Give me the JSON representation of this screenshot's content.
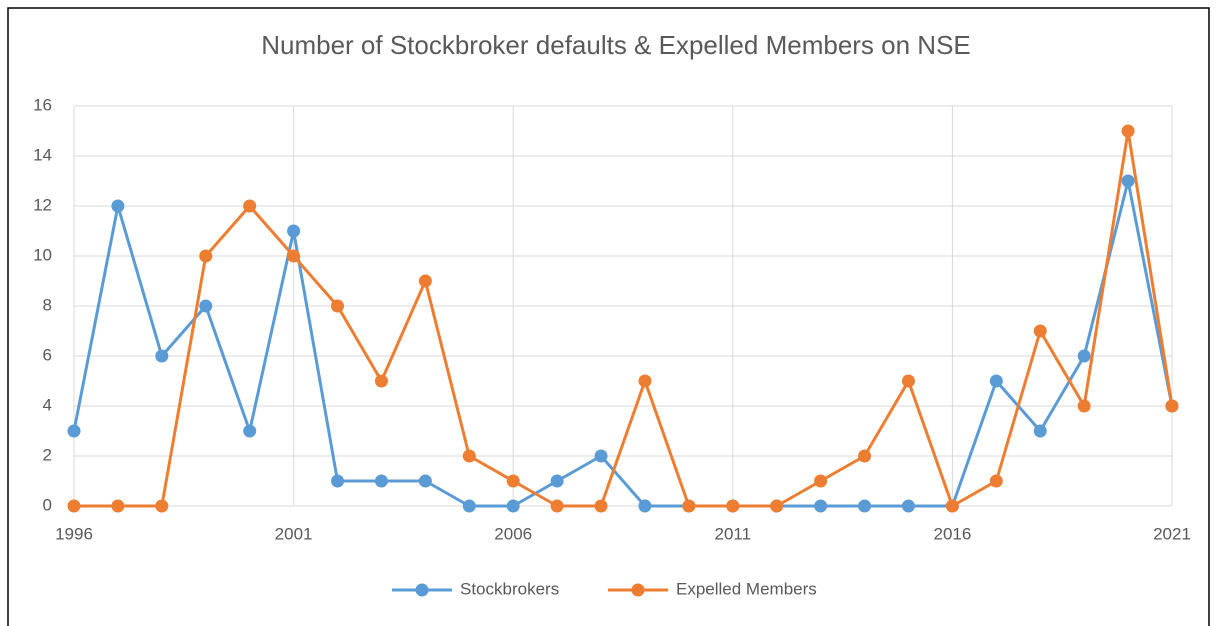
{
  "chart_data": {
    "type": "line",
    "title": "Number of Stockbroker defaults & Expelled Members on NSE",
    "x": [
      1996,
      1997,
      1998,
      1999,
      2000,
      2001,
      2002,
      2003,
      2004,
      2005,
      2006,
      2007,
      2008,
      2009,
      2010,
      2011,
      2012,
      2013,
      2014,
      2015,
      2016,
      2017,
      2018,
      2019,
      2020,
      2021
    ],
    "series": [
      {
        "name": "Stockbrokers",
        "color": "#5b9bd5",
        "values": [
          3,
          12,
          6,
          8,
          3,
          11,
          1,
          1,
          1,
          0,
          0,
          1,
          2,
          0,
          0,
          0,
          0,
          0,
          0,
          0,
          0,
          5,
          3,
          6,
          13,
          4
        ]
      },
      {
        "name": "Expelled Members",
        "color": "#ed7d31",
        "values": [
          0,
          0,
          0,
          10,
          12,
          10,
          8,
          5,
          9,
          2,
          1,
          0,
          0,
          5,
          0,
          0,
          0,
          1,
          2,
          5,
          0,
          1,
          7,
          4,
          15,
          4
        ]
      }
    ],
    "xlim": [
      1996,
      2021
    ],
    "xticks": [
      1996,
      2001,
      2006,
      2011,
      2016,
      2021
    ],
    "ylim": [
      0,
      16
    ],
    "yticks": [
      0,
      2,
      4,
      6,
      8,
      10,
      12,
      14,
      16
    ],
    "grid": true,
    "legend": "bottom"
  }
}
